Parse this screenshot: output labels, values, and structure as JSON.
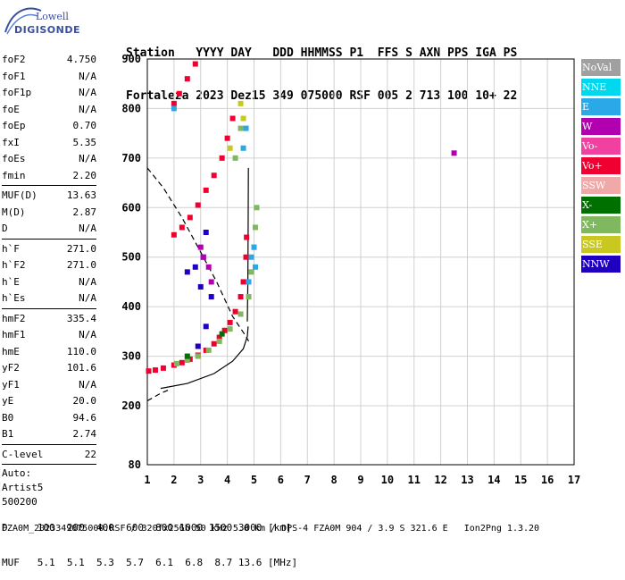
{
  "logo": {
    "line1": "Lowell",
    "line2": "DIGISONDE"
  },
  "header": {
    "line1": "Station   YYYY DAY   DDD HHMMSS P1  FFS S AXN PPS IGA PS",
    "line2": "Fortaleza 2023 Dez15 349 075000 RSF 005 2 713 100 10+ 22"
  },
  "params": {
    "group1": [
      {
        "label": "foF2",
        "value": "4.750"
      },
      {
        "label": "foF1",
        "value": "N/A"
      },
      {
        "label": "foF1p",
        "value": "N/A"
      },
      {
        "label": "foE",
        "value": "N/A"
      },
      {
        "label": "foEp",
        "value": "0.70"
      },
      {
        "label": "fxI",
        "value": "5.35"
      },
      {
        "label": "foEs",
        "value": "N/A"
      },
      {
        "label": "fmin",
        "value": "2.20"
      }
    ],
    "group2": [
      {
        "label": "MUF(D)",
        "value": "13.63"
      },
      {
        "label": "M(D)",
        "value": "2.87"
      },
      {
        "label": "D",
        "value": "N/A"
      }
    ],
    "group3": [
      {
        "label": "h`F",
        "value": "271.0"
      },
      {
        "label": "h`F2",
        "value": "271.0"
      },
      {
        "label": "h`E",
        "value": "N/A"
      },
      {
        "label": "h`Es",
        "value": "N/A"
      }
    ],
    "group4": [
      {
        "label": "hmF2",
        "value": "335.4"
      },
      {
        "label": "hmF1",
        "value": "N/A"
      },
      {
        "label": "hmE",
        "value": "110.0"
      },
      {
        "label": "yF2",
        "value": "101.6"
      },
      {
        "label": "yF1",
        "value": "N/A"
      },
      {
        "label": "yE",
        "value": "20.0"
      },
      {
        "label": "B0",
        "value": "94.6"
      },
      {
        "label": "B1",
        "value": "2.74"
      }
    ],
    "group5": [
      {
        "label": "C-level",
        "value": "22"
      }
    ],
    "auto": {
      "line1": "Auto:",
      "line2": "Artist5",
      "line3": "500200"
    }
  },
  "legend": [
    {
      "label": "NoVal",
      "color": "#a0a0a0"
    },
    {
      "label": "NNE",
      "color": "#00d8f0"
    },
    {
      "label": "E",
      "color": "#2aa8e8"
    },
    {
      "label": "W",
      "color": "#b000b0"
    },
    {
      "label": "Vo-",
      "color": "#f040a0"
    },
    {
      "label": "Vo+",
      "color": "#f00030"
    },
    {
      "label": "SSW",
      "color": "#f0a8a8"
    },
    {
      "label": "X-",
      "color": "#007000"
    },
    {
      "label": "X+",
      "color": "#80b860"
    },
    {
      "label": "SSE",
      "color": "#c8c820"
    },
    {
      "label": "NNW",
      "color": "#2000c0"
    }
  ],
  "bottom": {
    "line1": "D     100  200  400  600  800 1000 1500 3000 [km]",
    "line2": "MUF   5.1  5.1  5.3  5.7  6.1  6.8  8.7 13.6 [MHz]"
  },
  "footer": "FZA0M_2023349075000.RSF / 320fx256h 50 kHz 5.0 km / DPS-4 FZA0M 904 / 3.9 S 321.6 E   Ion2Png 1.3.20",
  "chart_data": {
    "type": "scatter",
    "x_ticks": [
      "1",
      "2",
      "3",
      "4",
      "5",
      "6",
      "7",
      "8",
      "9",
      "10",
      "11",
      "12",
      "13",
      "14",
      "15",
      "16",
      "17"
    ],
    "y_ticks": [
      "900",
      "800",
      "700",
      "600",
      "500",
      "400",
      "300",
      "200",
      "80"
    ],
    "xlim": [
      1,
      17
    ],
    "ylim": [
      80,
      900
    ],
    "grid": true,
    "traces": [
      {
        "name": "Vo+",
        "color": "#f00030",
        "points": [
          [
            1.05,
            270
          ],
          [
            1.3,
            272
          ],
          [
            1.6,
            276
          ],
          [
            2.0,
            282
          ],
          [
            2.3,
            287
          ],
          [
            2.6,
            294
          ],
          [
            2.9,
            302
          ],
          [
            3.2,
            312
          ],
          [
            3.5,
            325
          ],
          [
            3.7,
            338
          ],
          [
            3.9,
            352
          ],
          [
            4.1,
            368
          ],
          [
            4.3,
            390
          ],
          [
            4.5,
            420
          ],
          [
            4.6,
            450
          ],
          [
            4.7,
            500
          ],
          [
            4.72,
            540
          ],
          [
            2.0,
            545
          ],
          [
            2.3,
            560
          ],
          [
            2.6,
            580
          ],
          [
            2.9,
            605
          ],
          [
            3.2,
            635
          ],
          [
            3.5,
            665
          ],
          [
            3.8,
            700
          ],
          [
            4.0,
            740
          ],
          [
            4.2,
            780
          ],
          [
            2.0,
            810
          ],
          [
            2.2,
            830
          ],
          [
            2.5,
            860
          ],
          [
            2.8,
            890
          ]
        ]
      },
      {
        "name": "X+",
        "color": "#80b860",
        "points": [
          [
            2.1,
            285
          ],
          [
            2.5,
            292
          ],
          [
            2.9,
            300
          ],
          [
            3.3,
            312
          ],
          [
            3.7,
            330
          ],
          [
            4.1,
            355
          ],
          [
            4.5,
            385
          ],
          [
            4.8,
            420
          ],
          [
            4.9,
            470
          ],
          [
            5.0,
            520
          ],
          [
            5.05,
            560
          ],
          [
            5.1,
            600
          ],
          [
            4.3,
            700
          ],
          [
            4.5,
            760
          ]
        ]
      },
      {
        "name": "E",
        "color": "#2aa8e8",
        "points": [
          [
            4.8,
            450
          ],
          [
            4.9,
            500
          ],
          [
            5.0,
            520
          ],
          [
            5.05,
            480
          ],
          [
            4.6,
            720
          ],
          [
            4.7,
            760
          ],
          [
            2.0,
            800
          ]
        ]
      },
      {
        "name": "NNW",
        "color": "#2000c0",
        "points": [
          [
            2.9,
            320
          ],
          [
            3.2,
            360
          ],
          [
            3.4,
            420
          ],
          [
            3.0,
            440
          ],
          [
            2.8,
            480
          ],
          [
            3.1,
            500
          ],
          [
            2.5,
            470
          ],
          [
            3.2,
            550
          ]
        ]
      },
      {
        "name": "W",
        "color": "#b000b0",
        "points": [
          [
            3.1,
            500
          ],
          [
            3.3,
            480
          ],
          [
            3.0,
            520
          ],
          [
            3.4,
            450
          ],
          [
            12.5,
            710
          ]
        ]
      },
      {
        "name": "SSE",
        "color": "#c8c820",
        "points": [
          [
            4.1,
            720
          ],
          [
            4.5,
            810
          ],
          [
            4.6,
            780
          ]
        ]
      },
      {
        "name": "X-",
        "color": "#007000",
        "points": [
          [
            2.5,
            300
          ],
          [
            3.8,
            345
          ]
        ]
      }
    ],
    "curves": [
      {
        "name": "profile",
        "style": "solid",
        "points": [
          [
            1.5,
            235
          ],
          [
            2.5,
            245
          ],
          [
            3.5,
            265
          ],
          [
            4.2,
            290
          ],
          [
            4.6,
            315
          ],
          [
            4.75,
            340
          ],
          [
            4.78,
            360
          ]
        ]
      },
      {
        "name": "trace",
        "style": "solid",
        "points": [
          [
            4.75,
            370
          ],
          [
            4.77,
            450
          ],
          [
            4.78,
            550
          ],
          [
            4.79,
            680
          ]
        ]
      },
      {
        "name": "muf",
        "style": "dashed",
        "points": [
          [
            1.0,
            680
          ],
          [
            1.6,
            640
          ],
          [
            2.3,
            580
          ],
          [
            3.0,
            510
          ],
          [
            3.6,
            450
          ],
          [
            4.2,
            380
          ],
          [
            4.7,
            340
          ],
          [
            4.8,
            330
          ]
        ]
      },
      {
        "name": "muf-lower",
        "style": "dashed",
        "points": [
          [
            1.0,
            210
          ],
          [
            1.5,
            225
          ],
          [
            1.8,
            232
          ]
        ]
      }
    ]
  }
}
